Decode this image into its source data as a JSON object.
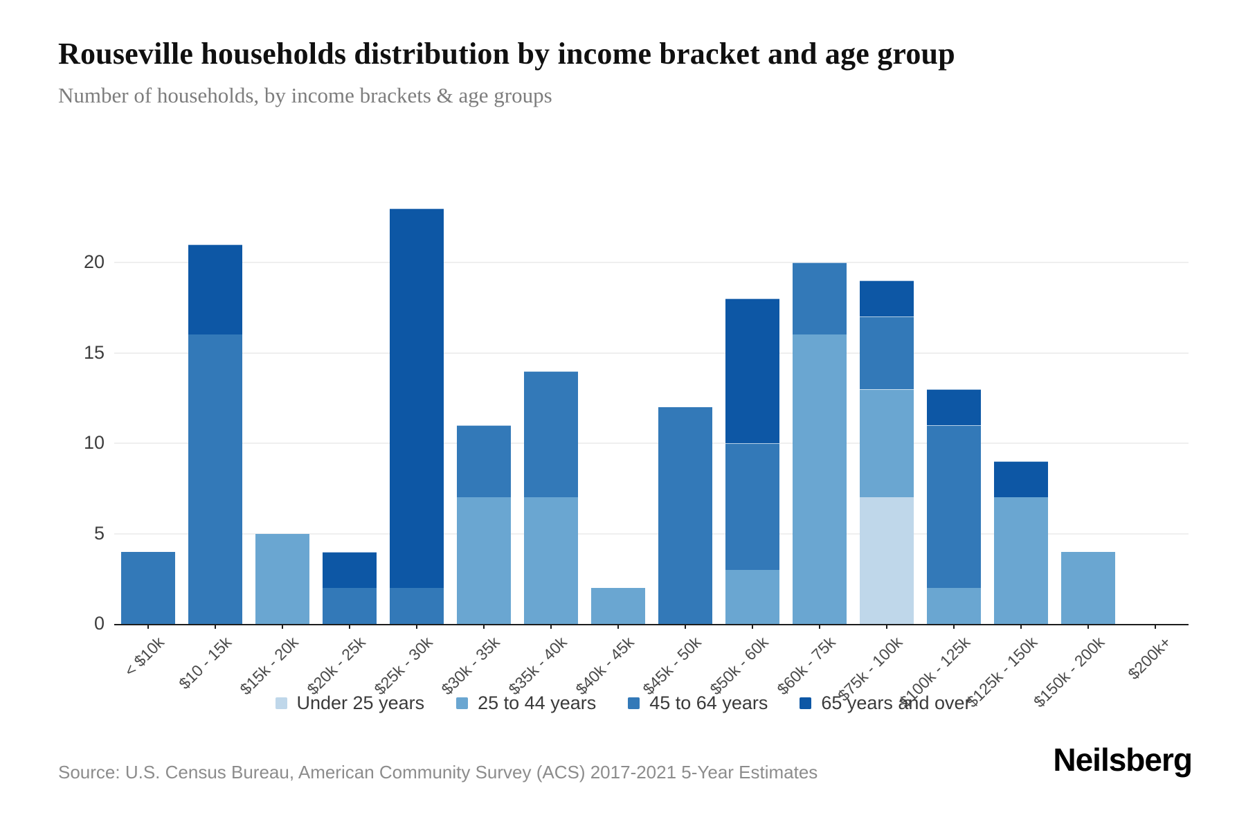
{
  "header": {
    "title": "Rouseville households distribution by income bracket and age group",
    "subtitle": "Number of households, by income brackets & age groups"
  },
  "footer": {
    "source": "Source: U.S. Census Bureau, American Community Survey (ACS) 2017-2021 5-Year Estimates",
    "logo": "Neilsberg"
  },
  "colors": {
    "axis": "#1c1c1c",
    "gridline": "#efefef",
    "title_text": "#101010",
    "subtitle_text": "#7d7d7d",
    "source_text": "#8c8c8c"
  },
  "chart_data": {
    "type": "bar",
    "stacked": true,
    "title": "Rouseville households distribution by income bracket and age group",
    "xlabel": "",
    "ylabel": "Number of households",
    "ylim": [
      0,
      23
    ],
    "yticks": [
      0,
      5,
      10,
      15,
      20
    ],
    "grid": "horizontal",
    "legend_position": "bottom",
    "categories": [
      "< $10k",
      "$10 - 15k",
      "$15k - 20k",
      "$20k - 25k",
      "$25k - 30k",
      "$30k - 35k",
      "$35k - 40k",
      "$40k - 45k",
      "$45k - 50k",
      "$50k - 60k",
      "$60k - 75k",
      "$75k - 100k",
      "$100k - 125k",
      "$125k - 150k",
      "$150k - 200k",
      "$200k+"
    ],
    "series": [
      {
        "name": "Under 25 years",
        "color": "#bfd7ea",
        "values": [
          0,
          0,
          0,
          0,
          0,
          0,
          0,
          0,
          0,
          0,
          0,
          7,
          0,
          0,
          0,
          0
        ]
      },
      {
        "name": "25 to 44 years",
        "color": "#6aa6d1",
        "values": [
          0,
          0,
          5,
          0,
          0,
          7,
          7,
          2,
          0,
          3,
          16,
          6,
          2,
          7,
          4,
          0
        ]
      },
      {
        "name": "45 to 64 years",
        "color": "#3379b8",
        "values": [
          4,
          16,
          0,
          2,
          2,
          4,
          7,
          0,
          12,
          7,
          4,
          4,
          9,
          0,
          0,
          0
        ]
      },
      {
        "name": "65 years and over",
        "color": "#0d57a5",
        "values": [
          0,
          5,
          0,
          2,
          21,
          0,
          0,
          0,
          0,
          8,
          0,
          2,
          2,
          2,
          0,
          0
        ]
      }
    ],
    "totals": [
      4,
      21,
      5,
      4,
      23,
      11,
      14,
      2,
      12,
      18,
      20,
      19,
      13,
      9,
      4,
      0
    ]
  }
}
